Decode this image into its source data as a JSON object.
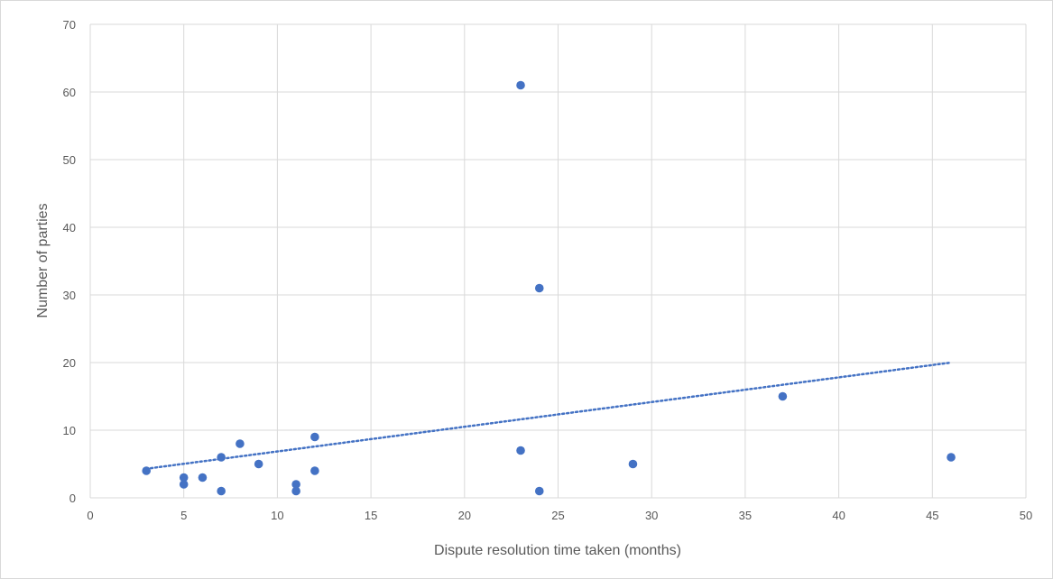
{
  "chart_data": {
    "type": "scatter",
    "title": "",
    "xlabel": "Dispute resolution time taken (months)",
    "ylabel": "Number of parties",
    "xlim": [
      0,
      50
    ],
    "ylim": [
      0,
      70
    ],
    "x_ticks": [
      0,
      5,
      10,
      15,
      20,
      25,
      30,
      35,
      40,
      45,
      50
    ],
    "y_ticks": [
      0,
      10,
      20,
      30,
      40,
      50,
      60,
      70
    ],
    "grid": true,
    "legend": "none",
    "series": [
      {
        "color": "#4472c4",
        "points": [
          {
            "x": 3,
            "y": 4
          },
          {
            "x": 5,
            "y": 3
          },
          {
            "x": 5,
            "y": 2
          },
          {
            "x": 6,
            "y": 3
          },
          {
            "x": 7,
            "y": 6
          },
          {
            "x": 7,
            "y": 1
          },
          {
            "x": 8,
            "y": 8
          },
          {
            "x": 9,
            "y": 5
          },
          {
            "x": 11,
            "y": 2
          },
          {
            "x": 11,
            "y": 1
          },
          {
            "x": 12,
            "y": 9
          },
          {
            "x": 12,
            "y": 4
          },
          {
            "x": 23,
            "y": 61
          },
          {
            "x": 23,
            "y": 7
          },
          {
            "x": 24,
            "y": 31
          },
          {
            "x": 24,
            "y": 1
          },
          {
            "x": 29,
            "y": 5
          },
          {
            "x": 37,
            "y": 15
          },
          {
            "x": 46,
            "y": 6
          }
        ]
      }
    ],
    "trendline": {
      "type": "linear",
      "style": "dotted",
      "color": "#4472c4",
      "x_range": [
        3,
        46
      ],
      "y_at_range": [
        4.3,
        20
      ]
    }
  }
}
